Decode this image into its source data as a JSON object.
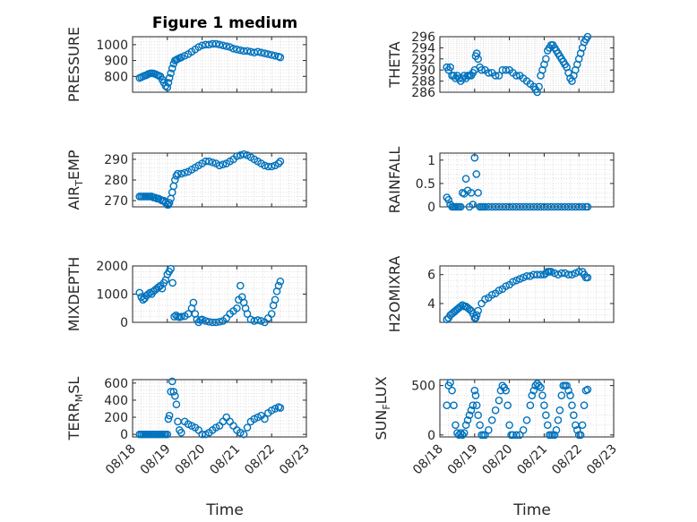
{
  "figure": {
    "title": "Figure 1 medium",
    "xlabel": "Time",
    "colors": {
      "marker": "#0072BD",
      "axis": "#262626",
      "grid": "#cccccc"
    }
  },
  "chart_data": [
    {
      "name": "pressure",
      "type": "scatter",
      "ylabel": "PRESSURE",
      "ylabel_sub": "",
      "ylabel_tail": "",
      "ylim": [
        700,
        1050
      ],
      "yticks": [
        800,
        900,
        1000
      ],
      "xlim": [
        "08/18",
        "08/23"
      ],
      "xticks": [
        "08/18",
        "08/19",
        "08/20",
        "08/21",
        "08/22",
        "08/23"
      ],
      "xtick_labels_shown": false,
      "grid": true,
      "x": [
        0.2,
        0.25,
        0.3,
        0.35,
        0.4,
        0.45,
        0.5,
        0.55,
        0.6,
        0.65,
        0.7,
        0.75,
        0.8,
        0.85,
        0.9,
        0.95,
        1.0,
        1.03,
        1.06,
        1.1,
        1.14,
        1.18,
        1.22,
        1.26,
        1.3,
        1.35,
        1.4,
        1.5,
        1.6,
        1.7,
        1.8,
        1.9,
        2.0,
        2.1,
        2.2,
        2.3,
        2.4,
        2.5,
        2.6,
        2.7,
        2.8,
        2.9,
        3.0,
        3.1,
        3.2,
        3.3,
        3.4,
        3.5,
        3.6,
        3.7,
        3.8,
        3.9,
        4.0,
        4.1,
        4.2,
        4.25
      ],
      "y": [
        790,
        795,
        800,
        805,
        808,
        815,
        818,
        820,
        818,
        815,
        810,
        805,
        800,
        780,
        760,
        740,
        730,
        760,
        790,
        820,
        850,
        880,
        900,
        905,
        910,
        915,
        920,
        930,
        940,
        955,
        970,
        985,
        995,
        1000,
        1000,
        1005,
        1005,
        1000,
        995,
        990,
        985,
        975,
        970,
        965,
        960,
        960,
        955,
        950,
        955,
        950,
        945,
        940,
        935,
        930,
        925,
        920
      ]
    },
    {
      "name": "theta",
      "type": "scatter",
      "ylabel": "THETA",
      "ylabel_sub": "",
      "ylabel_tail": "",
      "ylim": [
        286,
        296
      ],
      "yticks": [
        286,
        288,
        290,
        292,
        294,
        296
      ],
      "xlim": [
        "08/18",
        "08/23"
      ],
      "xticks": [
        "08/18",
        "08/19",
        "08/20",
        "08/21",
        "08/22",
        "08/23"
      ],
      "xtick_labels_shown": false,
      "grid": true,
      "x": [
        0.2,
        0.25,
        0.3,
        0.35,
        0.4,
        0.45,
        0.5,
        0.55,
        0.6,
        0.65,
        0.7,
        0.75,
        0.8,
        0.85,
        0.9,
        0.95,
        1.0,
        1.03,
        1.06,
        1.1,
        1.15,
        1.2,
        1.3,
        1.4,
        1.5,
        1.6,
        1.7,
        1.8,
        1.9,
        2.0,
        2.1,
        2.2,
        2.3,
        2.4,
        2.5,
        2.6,
        2.7,
        2.75,
        2.8,
        2.85,
        2.9,
        2.95,
        3.0,
        3.05,
        3.1,
        3.15,
        3.2,
        3.25,
        3.3,
        3.35,
        3.4,
        3.45,
        3.5,
        3.55,
        3.6,
        3.65,
        3.7,
        3.75,
        3.8,
        3.85,
        3.9,
        3.95,
        4.0,
        4.05,
        4.1,
        4.15,
        4.2,
        4.25
      ],
      "y": [
        290.5,
        290,
        290.5,
        289,
        289,
        288.5,
        289,
        288.5,
        288,
        288.5,
        289,
        288.5,
        289,
        289,
        289,
        289.5,
        290,
        292.5,
        293,
        292,
        290.5,
        290,
        290,
        289.5,
        289.5,
        289,
        289,
        290,
        290,
        290,
        289.5,
        289,
        289,
        288.5,
        288,
        287.5,
        287,
        286.5,
        286,
        287,
        289,
        290,
        291,
        292,
        293.5,
        294,
        294.5,
        294.5,
        294,
        293.5,
        293,
        292.5,
        292,
        291.5,
        291,
        290.5,
        289.5,
        288.5,
        288,
        289,
        290,
        291,
        292,
        293,
        294,
        295,
        295.5,
        296
      ]
    },
    {
      "name": "air_temp",
      "type": "scatter",
      "ylabel": "AIR",
      "ylabel_sub": "T",
      "ylabel_tail": "EMP",
      "ylim": [
        267,
        293
      ],
      "yticks": [
        270,
        280,
        290
      ],
      "xlim": [
        "08/18",
        "08/23"
      ],
      "xticks": [
        "08/18",
        "08/19",
        "08/20",
        "08/21",
        "08/22",
        "08/23"
      ],
      "xtick_labels_shown": false,
      "grid": true,
      "x": [
        0.2,
        0.25,
        0.3,
        0.35,
        0.4,
        0.45,
        0.5,
        0.55,
        0.6,
        0.65,
        0.7,
        0.75,
        0.8,
        0.85,
        0.9,
        0.95,
        1.0,
        1.03,
        1.06,
        1.1,
        1.14,
        1.18,
        1.22,
        1.26,
        1.3,
        1.4,
        1.5,
        1.6,
        1.7,
        1.8,
        1.9,
        2.0,
        2.1,
        2.2,
        2.3,
        2.4,
        2.5,
        2.6,
        2.7,
        2.8,
        2.9,
        3.0,
        3.1,
        3.2,
        3.3,
        3.4,
        3.5,
        3.6,
        3.7,
        3.8,
        3.9,
        4.0,
        4.1,
        4.2,
        4.25
      ],
      "y": [
        272,
        272,
        272,
        272,
        272,
        272,
        272,
        272,
        271.5,
        271.5,
        271,
        271,
        270.5,
        270,
        270,
        269,
        268,
        268,
        269,
        271,
        274,
        277,
        280,
        282,
        283,
        283,
        283.5,
        284,
        285,
        286,
        287,
        288,
        289,
        289,
        288.5,
        288,
        287,
        287.5,
        288,
        289,
        290,
        291.5,
        292,
        292.5,
        292,
        291,
        290,
        289,
        288,
        287,
        286.5,
        286.5,
        287,
        288,
        289
      ]
    },
    {
      "name": "rainfall",
      "type": "scatter",
      "ylabel": "RAINFALL",
      "ylabel_sub": "",
      "ylabel_tail": "",
      "ylim": [
        0,
        1.15
      ],
      "yticks": [
        0,
        0.5,
        1
      ],
      "xlim": [
        "08/18",
        "08/23"
      ],
      "xticks": [
        "08/18",
        "08/19",
        "08/20",
        "08/21",
        "08/22",
        "08/23"
      ],
      "xtick_labels_shown": false,
      "grid": true,
      "x": [
        0.2,
        0.25,
        0.3,
        0.35,
        0.4,
        0.45,
        0.5,
        0.55,
        0.6,
        0.65,
        0.7,
        0.75,
        0.8,
        0.85,
        0.9,
        0.95,
        1.0,
        1.05,
        1.1,
        1.15,
        1.2,
        1.25,
        1.3,
        1.4,
        1.5,
        1.6,
        1.7,
        1.8,
        1.9,
        2.0,
        2.1,
        2.2,
        2.3,
        2.4,
        2.5,
        2.6,
        2.7,
        2.8,
        2.9,
        3.0,
        3.1,
        3.2,
        3.3,
        3.4,
        3.5,
        3.6,
        3.7,
        3.8,
        3.9,
        4.0,
        4.1,
        4.2,
        4.25
      ],
      "y": [
        0.2,
        0.15,
        0.05,
        0,
        0,
        0,
        0,
        0,
        0,
        0.3,
        0.28,
        0.6,
        0.35,
        0,
        0.3,
        0.05,
        1.05,
        0.7,
        0.3,
        0,
        0,
        0,
        0,
        0,
        0,
        0,
        0,
        0,
        0,
        0,
        0,
        0,
        0,
        0,
        0,
        0,
        0,
        0,
        0,
        0,
        0,
        0,
        0,
        0,
        0,
        0,
        0,
        0,
        0,
        0,
        0,
        0,
        0
      ]
    },
    {
      "name": "mixdepth",
      "type": "scatter",
      "ylabel": "MIXDEPTH",
      "ylabel_sub": "",
      "ylabel_tail": "",
      "ylim": [
        0,
        2000
      ],
      "yticks": [
        0,
        1000,
        2000
      ],
      "xlim": [
        "08/18",
        "08/23"
      ],
      "xticks": [
        "08/18",
        "08/19",
        "08/20",
        "08/21",
        "08/22",
        "08/23"
      ],
      "xtick_labels_shown": false,
      "grid": true,
      "x": [
        0.2,
        0.25,
        0.3,
        0.35,
        0.4,
        0.45,
        0.5,
        0.55,
        0.6,
        0.65,
        0.7,
        0.75,
        0.8,
        0.85,
        0.9,
        0.95,
        1.0,
        1.05,
        1.1,
        1.15,
        1.2,
        1.25,
        1.3,
        1.35,
        1.4,
        1.5,
        1.6,
        1.7,
        1.75,
        1.8,
        1.85,
        1.9,
        1.95,
        2.0,
        2.1,
        2.2,
        2.3,
        2.4,
        2.5,
        2.6,
        2.7,
        2.8,
        2.9,
        3.0,
        3.05,
        3.1,
        3.15,
        3.2,
        3.25,
        3.3,
        3.4,
        3.5,
        3.6,
        3.7,
        3.8,
        3.9,
        4.0,
        4.05,
        4.1,
        4.15,
        4.2,
        4.25
      ],
      "y": [
        1050,
        900,
        800,
        850,
        950,
        1000,
        1050,
        1000,
        1100,
        1150,
        1200,
        1250,
        1300,
        1200,
        1400,
        1500,
        1700,
        1800,
        1900,
        1400,
        200,
        250,
        200,
        180,
        200,
        220,
        300,
        500,
        700,
        300,
        100,
        0,
        80,
        100,
        50,
        20,
        0,
        0,
        20,
        50,
        150,
        300,
        400,
        500,
        800,
        1300,
        900,
        700,
        500,
        300,
        100,
        50,
        80,
        50,
        0,
        150,
        300,
        600,
        800,
        1100,
        1300,
        1450
      ]
    },
    {
      "name": "h2omixra",
      "type": "scatter",
      "ylabel": "H2OMIXRA",
      "ylabel_sub": "",
      "ylabel_tail": "",
      "ylim": [
        2.7,
        6.6
      ],
      "yticks": [
        4,
        6
      ],
      "xlim": [
        "08/18",
        "08/23"
      ],
      "xticks": [
        "08/18",
        "08/19",
        "08/20",
        "08/21",
        "08/22",
        "08/23"
      ],
      "xtick_labels_shown": false,
      "grid": true,
      "x": [
        0.2,
        0.25,
        0.3,
        0.35,
        0.4,
        0.45,
        0.5,
        0.55,
        0.6,
        0.65,
        0.7,
        0.75,
        0.8,
        0.85,
        0.9,
        0.95,
        1.0,
        1.03,
        1.06,
        1.1,
        1.2,
        1.3,
        1.4,
        1.5,
        1.6,
        1.7,
        1.8,
        1.9,
        2.0,
        2.1,
        2.2,
        2.3,
        2.4,
        2.5,
        2.6,
        2.7,
        2.8,
        2.9,
        3.0,
        3.05,
        3.1,
        3.15,
        3.2,
        3.3,
        3.4,
        3.5,
        3.6,
        3.7,
        3.8,
        3.9,
        4.0,
        4.1,
        4.15,
        4.2,
        4.25
      ],
      "y": [
        2.9,
        3.0,
        3.2,
        3.3,
        3.4,
        3.5,
        3.6,
        3.7,
        3.8,
        3.9,
        3.8,
        3.8,
        3.7,
        3.6,
        3.5,
        3.3,
        3.0,
        3.0,
        3.2,
        3.5,
        4.0,
        4.3,
        4.4,
        4.6,
        4.7,
        4.9,
        5.0,
        5.2,
        5.3,
        5.5,
        5.6,
        5.7,
        5.8,
        5.9,
        5.9,
        6.0,
        6.0,
        6.0,
        6.0,
        6.1,
        6.2,
        6.2,
        6.2,
        6.1,
        6.0,
        6.1,
        6.1,
        6.0,
        6.0,
        6.1,
        6.2,
        6.2,
        6.0,
        5.8,
        5.8
      ]
    },
    {
      "name": "terr_msl",
      "type": "scatter",
      "ylabel": "TERR",
      "ylabel_sub": "M",
      "ylabel_tail": "SL",
      "ylim": [
        -30,
        640
      ],
      "yticks": [
        0,
        200,
        400,
        600
      ],
      "xlim": [
        "08/18",
        "08/23"
      ],
      "xticks": [
        "08/18",
        "08/19",
        "08/20",
        "08/21",
        "08/22",
        "08/23"
      ],
      "xtick_labels_shown": true,
      "grid": true,
      "x": [
        0.2,
        0.25,
        0.3,
        0.35,
        0.4,
        0.45,
        0.5,
        0.55,
        0.6,
        0.65,
        0.7,
        0.75,
        0.8,
        0.85,
        0.9,
        0.95,
        1.0,
        1.03,
        1.06,
        1.1,
        1.14,
        1.18,
        1.22,
        1.26,
        1.3,
        1.35,
        1.4,
        1.5,
        1.6,
        1.7,
        1.8,
        1.9,
        2.0,
        2.1,
        2.2,
        2.3,
        2.4,
        2.5,
        2.6,
        2.7,
        2.8,
        2.9,
        3.0,
        3.1,
        3.2,
        3.3,
        3.4,
        3.5,
        3.6,
        3.7,
        3.8,
        3.9,
        4.0,
        4.1,
        4.2,
        4.25
      ],
      "y": [
        0,
        0,
        0,
        0,
        0,
        0,
        0,
        0,
        0,
        0,
        0,
        0,
        0,
        0,
        0,
        0,
        0,
        180,
        220,
        500,
        620,
        500,
        450,
        350,
        150,
        50,
        20,
        150,
        120,
        100,
        80,
        50,
        0,
        0,
        20,
        50,
        80,
        100,
        150,
        200,
        150,
        100,
        50,
        20,
        0,
        80,
        150,
        180,
        200,
        220,
        180,
        250,
        280,
        300,
        320,
        310
      ]
    },
    {
      "name": "sun_flux",
      "type": "scatter",
      "ylabel": "SUN",
      "ylabel_sub": "F",
      "ylabel_tail": "LUX",
      "ylim": [
        -20,
        560
      ],
      "yticks": [
        0,
        500
      ],
      "xlim": [
        "08/18",
        "08/23"
      ],
      "xticks": [
        "08/18",
        "08/19",
        "08/20",
        "08/21",
        "08/22",
        "08/23"
      ],
      "xtick_labels_shown": true,
      "grid": true,
      "x": [
        0.2,
        0.25,
        0.3,
        0.35,
        0.4,
        0.45,
        0.5,
        0.55,
        0.6,
        0.65,
        0.7,
        0.75,
        0.8,
        0.85,
        0.9,
        0.95,
        1.0,
        1.03,
        1.06,
        1.1,
        1.15,
        1.2,
        1.25,
        1.3,
        1.4,
        1.5,
        1.6,
        1.7,
        1.75,
        1.8,
        1.85,
        1.9,
        1.95,
        2.0,
        2.05,
        2.1,
        2.2,
        2.3,
        2.4,
        2.5,
        2.6,
        2.65,
        2.7,
        2.75,
        2.8,
        2.85,
        2.9,
        2.95,
        3.0,
        3.05,
        3.1,
        3.15,
        3.2,
        3.25,
        3.3,
        3.35,
        3.4,
        3.45,
        3.5,
        3.55,
        3.6,
        3.65,
        3.7,
        3.75,
        3.8,
        3.85,
        3.9,
        3.95,
        4.0,
        4.05,
        4.1,
        4.15,
        4.2,
        4.25
      ],
      "y": [
        300,
        500,
        530,
        450,
        300,
        100,
        20,
        0,
        20,
        0,
        20,
        100,
        150,
        200,
        250,
        300,
        450,
        400,
        300,
        200,
        100,
        0,
        0,
        0,
        50,
        150,
        250,
        350,
        450,
        500,
        480,
        450,
        300,
        100,
        0,
        0,
        0,
        0,
        50,
        150,
        300,
        400,
        450,
        500,
        520,
        500,
        480,
        400,
        300,
        200,
        100,
        0,
        0,
        0,
        0,
        50,
        150,
        250,
        400,
        500,
        500,
        500,
        450,
        400,
        300,
        200,
        100,
        50,
        0,
        0,
        100,
        300,
        450,
        460
      ]
    }
  ]
}
